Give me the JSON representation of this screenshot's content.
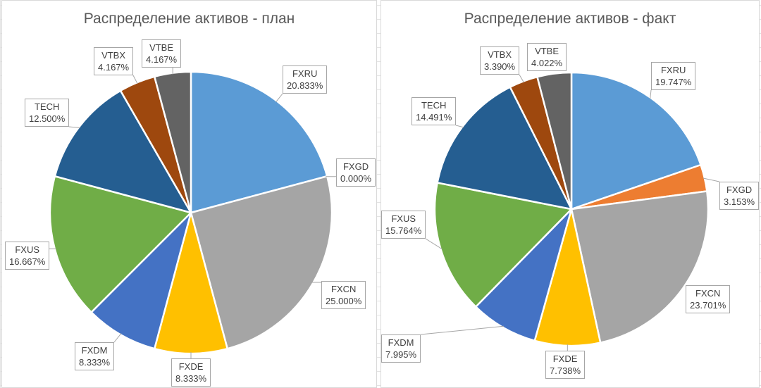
{
  "colors": {
    "FXRU": "#5b9bd5",
    "FXGD": "#ed7d31",
    "FXCN": "#a5a5a5",
    "FXDE": "#ffc000",
    "FXDM": "#4472c4",
    "FXUS": "#70ad47",
    "TECH": "#255e91",
    "VTBX": "#9e480e",
    "VTBE": "#636363"
  },
  "chart_data": [
    {
      "type": "pie",
      "title": "Распределение активов - план",
      "slices": [
        {
          "label": "FXRU",
          "value": 20.833,
          "value_text": "20.833%"
        },
        {
          "label": "FXGD",
          "value": 0.0,
          "value_text": "0.000%"
        },
        {
          "label": "FXCN",
          "value": 25.0,
          "value_text": "25.000%"
        },
        {
          "label": "FXDE",
          "value": 8.333,
          "value_text": "8.333%"
        },
        {
          "label": "FXDM",
          "value": 8.333,
          "value_text": "8.333%"
        },
        {
          "label": "FXUS",
          "value": 16.667,
          "value_text": "16.667%"
        },
        {
          "label": "TECH",
          "value": 12.5,
          "value_text": "12.500%"
        },
        {
          "label": "VTBX",
          "value": 4.167,
          "value_text": "4.167%"
        },
        {
          "label": "VTBE",
          "value": 4.167,
          "value_text": "4.167%"
        }
      ]
    },
    {
      "type": "pie",
      "title": "Распределение активов - факт",
      "slices": [
        {
          "label": "FXRU",
          "value": 19.747,
          "value_text": "19.747%"
        },
        {
          "label": "FXGD",
          "value": 3.153,
          "value_text": "3.153%"
        },
        {
          "label": "FXCN",
          "value": 23.701,
          "value_text": "23.701%"
        },
        {
          "label": "FXDE",
          "value": 7.738,
          "value_text": "7.738%"
        },
        {
          "label": "FXDM",
          "value": 7.995,
          "value_text": "7.995%"
        },
        {
          "label": "FXUS",
          "value": 15.764,
          "value_text": "15.764%"
        },
        {
          "label": "TECH",
          "value": 14.491,
          "value_text": "14.491%"
        },
        {
          "label": "VTBX",
          "value": 3.39,
          "value_text": "3.390%"
        },
        {
          "label": "VTBE",
          "value": 4.022,
          "value_text": "4.022%"
        }
      ]
    }
  ]
}
